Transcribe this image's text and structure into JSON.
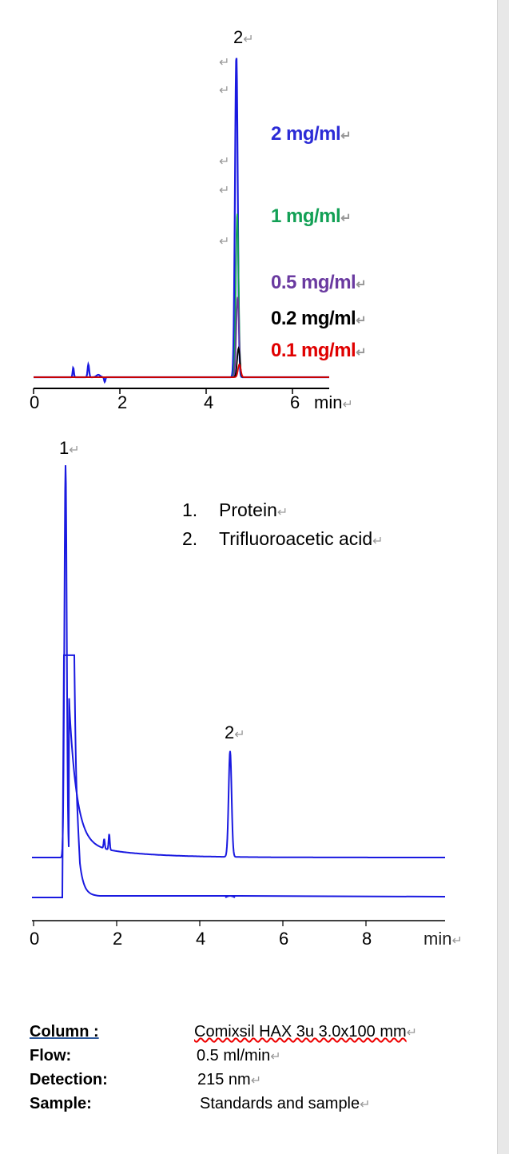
{
  "top_chart": {
    "peak_label": "2",
    "x_ticks": [
      "0",
      "2",
      "4",
      "6"
    ],
    "x_unit": "min",
    "concentrations": [
      {
        "label": "2 mg/ml",
        "color": "#2b2bd6"
      },
      {
        "label": "1 mg/ml",
        "color": "#12a055"
      },
      {
        "label": "0.5 mg/ml",
        "color": "#6a3aa0"
      },
      {
        "label": "0.2 mg/ml",
        "color": "#000000"
      },
      {
        "label": "0.1 mg/ml",
        "color": "#e00000"
      }
    ]
  },
  "bottom_chart": {
    "peak_labels": [
      "1",
      "2"
    ],
    "x_ticks": [
      "0",
      "2",
      "4",
      "6",
      "8"
    ],
    "x_unit": "min",
    "legend": [
      {
        "num": "1.",
        "text": "Protein"
      },
      {
        "num": "2.",
        "text": "Trifluoroacetic acid"
      }
    ]
  },
  "chart_data": [
    {
      "type": "line",
      "xlabel": "min",
      "xlim": [
        0,
        7
      ],
      "x_ticks": [
        0,
        2,
        4,
        6
      ],
      "series": [
        {
          "name": "2 mg/ml",
          "color": "#1a1ae0",
          "peak_time": 4.7,
          "peak_height": 100
        },
        {
          "name": "1 mg/ml",
          "color": "#12a055",
          "peak_time": 4.72,
          "peak_height": 51
        },
        {
          "name": "0.5 mg/ml",
          "color": "#6a3aa0",
          "peak_time": 4.73,
          "peak_height": 25
        },
        {
          "name": "0.2 mg/ml",
          "color": "#000000",
          "peak_time": 4.75,
          "peak_height": 9
        },
        {
          "name": "0.1 mg/ml",
          "color": "#e00000",
          "peak_time": 4.77,
          "peak_height": 4
        }
      ]
    },
    {
      "type": "line",
      "xlabel": "min",
      "xlim": [
        0,
        10
      ],
      "x_ticks": [
        0,
        2,
        4,
        6,
        8
      ],
      "series": [
        {
          "color": "#1a1ae0",
          "peaks": [
            {
              "label": "1",
              "time": 0.77,
              "height": 100
            },
            {
              "label": "2",
              "time": 4.73,
              "height": 27
            }
          ]
        },
        {
          "color": "#1a1ae0",
          "peaks": [
            {
              "time": 0.8,
              "height": 63
            }
          ]
        }
      ]
    }
  ],
  "info": [
    {
      "key": "Column :",
      "value": "Comixsil HAX 3u 3.0x100 mm"
    },
    {
      "key": "Flow:",
      "value": "0.5 ml/min"
    },
    {
      "key": "Detection:",
      "value": "215 nm"
    },
    {
      "key": "Sample:",
      "value": "Standards and sample"
    }
  ],
  "paragraph_mark": "↵"
}
